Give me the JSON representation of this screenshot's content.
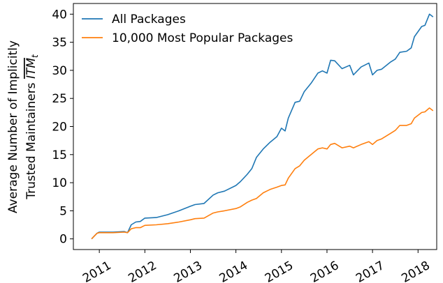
{
  "chart_data": {
    "type": "line",
    "ylabel": [
      "Average Number of Implicitly",
      "Trusted Maintainers"
    ],
    "ylabel_symbol": "ITM",
    "ylabel_subscript": "t",
    "x": [
      2010.83,
      2010.95,
      2011.0,
      2011.3,
      2011.55,
      2011.62,
      2011.7,
      2011.8,
      2011.9,
      2012.0,
      2012.25,
      2012.5,
      2012.75,
      2013.0,
      2013.1,
      2013.3,
      2013.5,
      2013.6,
      2013.75,
      2014.0,
      2014.1,
      2014.25,
      2014.35,
      2014.45,
      2014.6,
      2014.75,
      2014.9,
      2015.0,
      2015.08,
      2015.15,
      2015.3,
      2015.4,
      2015.5,
      2015.65,
      2015.8,
      2015.9,
      2016.0,
      2016.08,
      2016.17,
      2016.33,
      2016.5,
      2016.58,
      2016.75,
      2016.92,
      2017.0,
      2017.1,
      2017.2,
      2017.4,
      2017.5,
      2017.6,
      2017.75,
      2017.85,
      2017.92,
      2018.08,
      2018.15,
      2018.25,
      2018.33
    ],
    "series": [
      {
        "name": "All Packages",
        "color": "#1f77b4",
        "values": [
          0,
          1.0,
          1.2,
          1.2,
          1.3,
          1.1,
          2.5,
          3.0,
          3.1,
          3.7,
          3.8,
          4.3,
          5.0,
          5.8,
          6.1,
          6.3,
          7.8,
          8.2,
          8.5,
          9.5,
          10.2,
          11.5,
          12.5,
          14.5,
          16,
          17.2,
          18.2,
          19.7,
          19.2,
          21.5,
          24.3,
          24.5,
          26.2,
          27.7,
          29.5,
          29.9,
          29.5,
          31.8,
          31.7,
          30.3,
          30.9,
          29.2,
          30.6,
          31.3,
          29.2,
          30.0,
          30.2,
          31.5,
          32.0,
          33.2,
          33.4,
          34,
          36,
          37.8,
          38.0,
          40.0,
          39.5
        ]
      },
      {
        "name": "10,000 Most Popular Packages",
        "color": "#ff7f0e",
        "values": [
          0,
          1.0,
          1.1,
          1.1,
          1.2,
          1.1,
          1.8,
          2.0,
          2.0,
          2.4,
          2.5,
          2.7,
          3.0,
          3.4,
          3.6,
          3.7,
          4.6,
          4.8,
          5.0,
          5.4,
          5.7,
          6.5,
          6.9,
          7.2,
          8.2,
          8.8,
          9.2,
          9.5,
          9.6,
          10.8,
          12.5,
          13,
          14,
          15,
          16,
          16.2,
          16.0,
          16.8,
          17.0,
          16.2,
          16.5,
          16.2,
          16.8,
          17.3,
          16.8,
          17.5,
          17.8,
          18.8,
          19.3,
          20.2,
          20.2,
          20.5,
          21.5,
          22.5,
          22.6,
          23.3,
          22.8
        ]
      }
    ],
    "xlim": [
      2010.43,
      2018.41
    ],
    "xticks": [
      2011,
      2012,
      2013,
      2014,
      2015,
      2016,
      2017,
      2018
    ],
    "ylim": [
      -1.9,
      41.9
    ],
    "yticks": [
      0,
      5,
      10,
      15,
      20,
      25,
      30,
      35,
      40
    ],
    "legend": "upper left",
    "grid": false
  }
}
